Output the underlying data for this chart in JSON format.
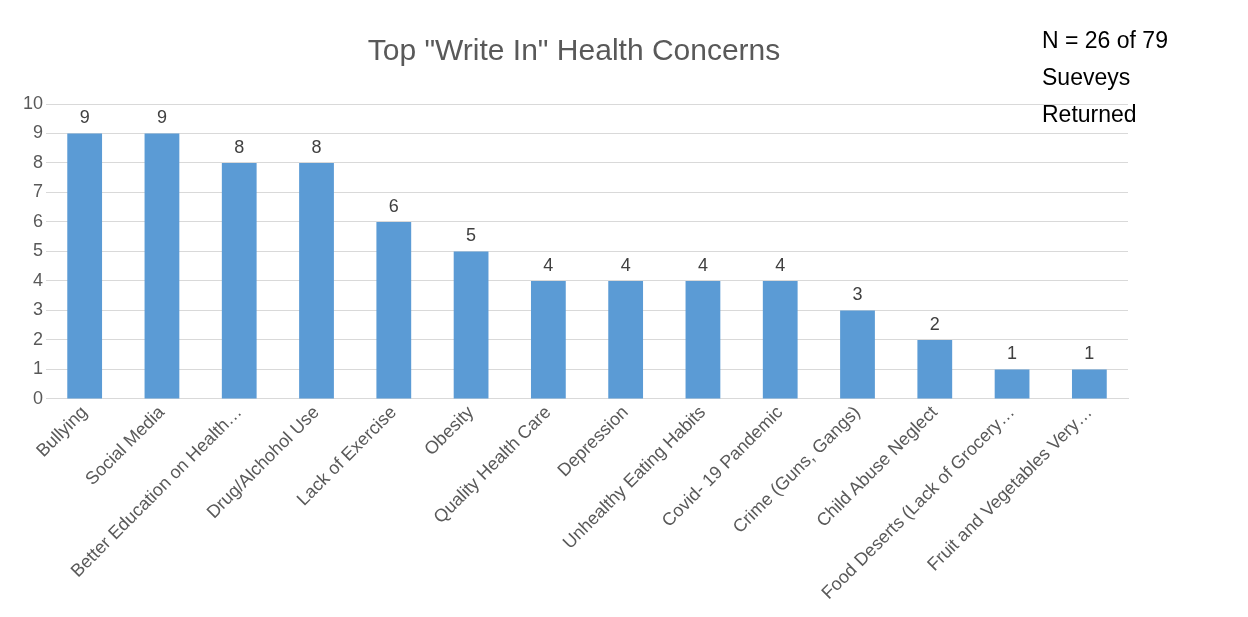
{
  "chart_data": {
    "type": "bar",
    "title": "Top \"Write In\" Health Concerns",
    "categories": [
      "Bullying",
      "Social Media",
      "Better Education on Health…",
      "Drug/Alchohol Use",
      "Lack of Exercise",
      "Obesity",
      "Quality Health Care",
      "Depression",
      "Unhealthy Eating Habits",
      "Covid- 19 Pandemic",
      "Crime (Guns, Gangs)",
      "Child Abuse Neglect",
      "Food Deserts (Lack of Grocery…",
      "Fruit and Vegetables Very…"
    ],
    "values": [
      9,
      9,
      8,
      8,
      6,
      5,
      4,
      4,
      4,
      4,
      3,
      2,
      1,
      1
    ],
    "color": "#5b9bd5",
    "ylim": [
      0,
      10
    ],
    "yticks": [
      0,
      1,
      2,
      3,
      4,
      5,
      6,
      7,
      8,
      9,
      10
    ],
    "grid": "y",
    "legend": false,
    "data_labels": true,
    "annotations": [
      "N = 26 of 79\nSueveys\nReturned"
    ]
  }
}
